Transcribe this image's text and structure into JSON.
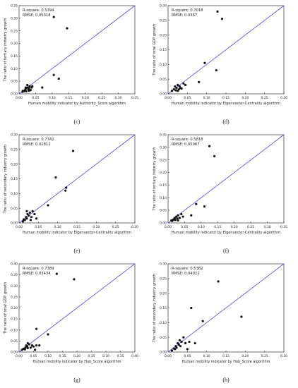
{
  "chart_data": [
    {
      "type": "scatter",
      "panel_label": "(c)",
      "annotation": [
        "R-square: 0.5394",
        "RMSE: 0.05318"
      ],
      "xlabel": "Human mobility indicator by Authority_Score algorithm",
      "ylabel": "The ratio of tertiary industry growth",
      "xlim": [
        0,
        0.35
      ],
      "ylim": [
        0,
        0.35
      ],
      "xticks": [
        "0.00",
        "0.05",
        "0.10",
        "0.15",
        "0.20",
        "0.25",
        "0.30",
        "0.35"
      ],
      "yticks": [
        "0.00",
        "0.05",
        "0.10",
        "0.15",
        "0.20",
        "0.25",
        "0.30",
        "0.35"
      ],
      "fit_line": {
        "x": [
          0,
          0.35
        ],
        "y": [
          0,
          0.35
        ]
      },
      "points": [
        [
          0.01,
          0.008
        ],
        [
          0.012,
          0.012
        ],
        [
          0.015,
          0.01
        ],
        [
          0.018,
          0.015
        ],
        [
          0.02,
          0.02
        ],
        [
          0.022,
          0.01
        ],
        [
          0.025,
          0.025
        ],
        [
          0.028,
          0.018
        ],
        [
          0.03,
          0.022
        ],
        [
          0.032,
          0.03
        ],
        [
          0.035,
          0.015
        ],
        [
          0.038,
          0.025
        ],
        [
          0.04,
          0.03
        ],
        [
          0.03,
          0.012
        ],
        [
          0.02,
          0.025
        ],
        [
          0.025,
          0.035
        ],
        [
          0.07,
          0.025
        ],
        [
          0.105,
          0.075
        ],
        [
          0.12,
          0.06
        ],
        [
          0.105,
          0.305
        ],
        [
          0.145,
          0.26
        ]
      ]
    },
    {
      "type": "scatter",
      "panel_label": "(d)",
      "annotation": [
        "R-square: 0.7018",
        "RMSE: 0.0367"
      ],
      "xlabel": "Human mobility indicator by Eigenvector-Centrality algorithm",
      "ylabel": "The ratio of total GDP growth",
      "xlim": [
        0,
        0.3
      ],
      "ylim": [
        0,
        0.3
      ],
      "xticks": [
        "0.00",
        "0.05",
        "0.10",
        "0.15",
        "0.20",
        "0.25",
        "0.30"
      ],
      "yticks": [
        "0.00",
        "0.05",
        "0.10",
        "0.15",
        "0.20",
        "0.25",
        "0.30"
      ],
      "fit_line": {
        "x": [
          0,
          0.3
        ],
        "y": [
          0,
          0.3
        ]
      },
      "points": [
        [
          0.01,
          0.01
        ],
        [
          0.015,
          0.015
        ],
        [
          0.018,
          0.025
        ],
        [
          0.02,
          0.012
        ],
        [
          0.022,
          0.02
        ],
        [
          0.025,
          0.03
        ],
        [
          0.028,
          0.015
        ],
        [
          0.03,
          0.025
        ],
        [
          0.032,
          0.02
        ],
        [
          0.035,
          0.018
        ],
        [
          0.04,
          0.035
        ],
        [
          0.045,
          0.03
        ],
        [
          0.025,
          0.01
        ],
        [
          0.08,
          0.04
        ],
        [
          0.095,
          0.105
        ],
        [
          0.125,
          0.08
        ],
        [
          0.128,
          0.28
        ],
        [
          0.14,
          0.255
        ]
      ]
    },
    {
      "type": "scatter",
      "panel_label": "(e)",
      "annotation": [
        "R-square: 0.7742",
        "RMSE: 0.02812"
      ],
      "xlabel": "Human mobility indicator by Eigenvector-Centrality algorithm",
      "ylabel": "The ratio of secondary industry growth",
      "xlim": [
        0,
        0.3
      ],
      "ylim": [
        0,
        0.3
      ],
      "xticks": [
        "0.00",
        "0.05",
        "0.10",
        "0.15",
        "0.20",
        "0.25",
        "0.30"
      ],
      "yticks": [
        "0.00",
        "0.05",
        "0.10",
        "0.15",
        "0.20",
        "0.25",
        "0.30"
      ],
      "fit_line": {
        "x": [
          0,
          0.3
        ],
        "y": [
          0,
          0.3
        ]
      },
      "points": [
        [
          0.01,
          0.005
        ],
        [
          0.012,
          0.012
        ],
        [
          0.015,
          0.01
        ],
        [
          0.018,
          0.02
        ],
        [
          0.02,
          0.015
        ],
        [
          0.022,
          0.03
        ],
        [
          0.025,
          0.025
        ],
        [
          0.028,
          0.035
        ],
        [
          0.03,
          0.01
        ],
        [
          0.032,
          0.02
        ],
        [
          0.035,
          0.04
        ],
        [
          0.04,
          0.03
        ],
        [
          0.045,
          0.015
        ],
        [
          0.02,
          0.04
        ],
        [
          0.075,
          0.06
        ],
        [
          0.095,
          0.155
        ],
        [
          0.12,
          0.11
        ],
        [
          0.122,
          0.12
        ],
        [
          0.14,
          0.245
        ]
      ]
    },
    {
      "type": "scatter",
      "panel_label": "(f)",
      "annotation": [
        "R-square: 0.5818",
        "RMSE: 0.05067"
      ],
      "xlabel": "Human mobility indicator by Eigenvector-Centrality algorithm",
      "ylabel": "The ratio of tertiary industry growth",
      "xlim": [
        0,
        0.35
      ],
      "ylim": [
        0,
        0.35
      ],
      "xticks": [
        "0.00",
        "0.05",
        "0.10",
        "0.15",
        "0.20",
        "0.25",
        "0.30",
        "0.35"
      ],
      "yticks": [
        "0.00",
        "0.05",
        "0.10",
        "0.15",
        "0.20",
        "0.25",
        "0.30",
        "0.35"
      ],
      "fit_line": {
        "x": [
          0,
          0.35
        ],
        "y": [
          0,
          0.35
        ]
      },
      "points": [
        [
          0.01,
          0.01
        ],
        [
          0.012,
          0.008
        ],
        [
          0.015,
          0.012
        ],
        [
          0.018,
          0.015
        ],
        [
          0.02,
          0.02
        ],
        [
          0.022,
          0.012
        ],
        [
          0.025,
          0.025
        ],
        [
          0.028,
          0.018
        ],
        [
          0.03,
          0.03
        ],
        [
          0.035,
          0.02
        ],
        [
          0.04,
          0.035
        ],
        [
          0.045,
          0.025
        ],
        [
          0.03,
          0.01
        ],
        [
          0.07,
          0.03
        ],
        [
          0.085,
          0.075
        ],
        [
          0.11,
          0.065
        ],
        [
          0.125,
          0.305
        ],
        [
          0.14,
          0.265
        ]
      ]
    },
    {
      "type": "scatter",
      "panel_label": "(g)",
      "annotation": [
        "R-square: 0.7389",
        "RMSE: 0.03434"
      ],
      "xlabel": "Human mobility indicator by Hub_Score algorithm",
      "ylabel": "The ratio of total GDP growth",
      "xlim": [
        0,
        0.4
      ],
      "ylim": [
        0,
        0.4
      ],
      "xticks": [
        "0.00",
        "0.05",
        "0.10",
        "0.15",
        "0.20",
        "0.25",
        "0.30",
        "0.35",
        "0.40"
      ],
      "yticks": [
        "0.00",
        "0.05",
        "0.10",
        "0.15",
        "0.20",
        "0.25",
        "0.30",
        "0.35",
        "0.40"
      ],
      "fit_line": {
        "x": [
          0,
          0.4
        ],
        "y": [
          0,
          0.4
        ]
      },
      "points": [
        [
          0.01,
          0.01
        ],
        [
          0.015,
          0.015
        ],
        [
          0.02,
          0.012
        ],
        [
          0.022,
          0.02
        ],
        [
          0.025,
          0.03
        ],
        [
          0.028,
          0.025
        ],
        [
          0.03,
          0.018
        ],
        [
          0.035,
          0.035
        ],
        [
          0.04,
          0.02
        ],
        [
          0.045,
          0.03
        ],
        [
          0.05,
          0.025
        ],
        [
          0.055,
          0.01
        ],
        [
          0.06,
          0.03
        ],
        [
          0.07,
          0.03
        ],
        [
          0.03,
          0.04
        ],
        [
          0.06,
          0.105
        ],
        [
          0.1,
          0.08
        ],
        [
          0.13,
          0.355
        ],
        [
          0.19,
          0.33
        ]
      ]
    },
    {
      "type": "scatter",
      "panel_label": "(h)",
      "annotation": [
        "R-square: 0.5382",
        "RMSE: 0.04022"
      ],
      "xlabel": "Human mobility indicator by Hub_Score algorithm",
      "ylabel": "The ratio of secondary industry growth",
      "xlim": [
        0,
        0.3
      ],
      "ylim": [
        0,
        0.3
      ],
      "xticks": [
        "0.00",
        "0.05",
        "0.10",
        "0.15",
        "0.20",
        "0.25",
        "0.30"
      ],
      "yticks": [
        "0.00",
        "0.05",
        "0.10",
        "0.15",
        "0.20",
        "0.25",
        "0.30"
      ],
      "fit_line": {
        "x": [
          0,
          0.3
        ],
        "y": [
          0,
          0.3
        ]
      },
      "points": [
        [
          0.01,
          0.005
        ],
        [
          0.015,
          0.012
        ],
        [
          0.018,
          0.01
        ],
        [
          0.02,
          0.02
        ],
        [
          0.022,
          0.015
        ],
        [
          0.025,
          0.03
        ],
        [
          0.028,
          0.025
        ],
        [
          0.03,
          0.04
        ],
        [
          0.032,
          0.02
        ],
        [
          0.035,
          0.035
        ],
        [
          0.04,
          0.05
        ],
        [
          0.045,
          0.03
        ],
        [
          0.05,
          0.01
        ],
        [
          0.055,
          0.035
        ],
        [
          0.06,
          0.15
        ],
        [
          0.07,
          0.03
        ],
        [
          0.09,
          0.105
        ],
        [
          0.13,
          0.24
        ],
        [
          0.19,
          0.12
        ]
      ]
    }
  ]
}
